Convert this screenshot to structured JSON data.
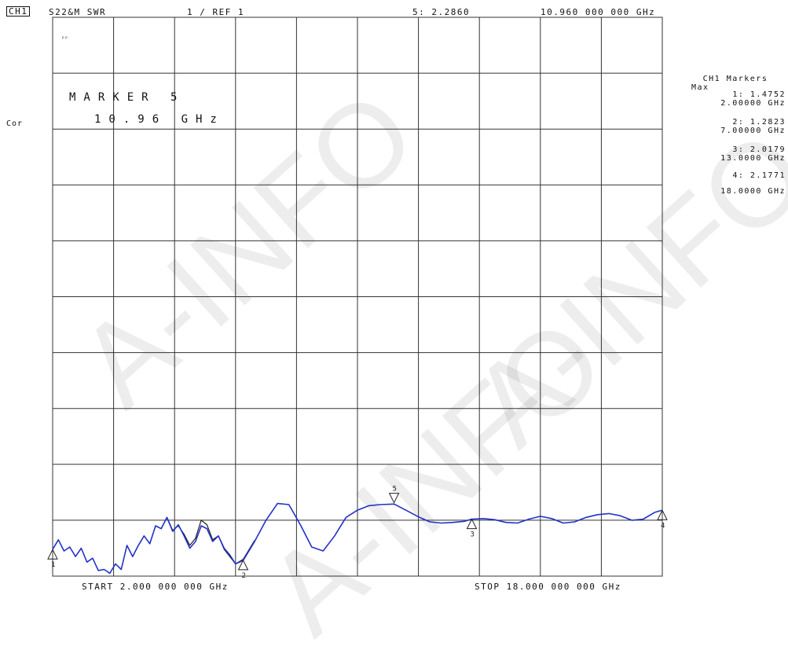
{
  "header": {
    "channel": "CH1",
    "param": "S22&M SWR",
    "scale": "1 / REF 1",
    "marker_value": "5: 2.2860",
    "marker_freq": "10.960 000 000 GHz"
  },
  "side_label": "Cor",
  "tiny_label": "ᵖᵖ",
  "active_marker": {
    "title": "MARKER 5",
    "freq": "10.96 GHz"
  },
  "marker_panel": {
    "header_line1": "CH1 Markers",
    "header_line2": "Max",
    "entries": [
      {
        "value": "1: 1.4752",
        "freq": "2.00000 GHz"
      },
      {
        "value": "2: 1.2823",
        "freq": "7.00000 GHz"
      },
      {
        "value": "3: 2.0179",
        "freq": "13.0000 GHz"
      },
      {
        "value": "4: 2.1771",
        "freq": "18.0000 GHz"
      }
    ]
  },
  "footer": {
    "start": "START 2.000 000 000 GHz",
    "stop": "STOP 18.000 000 000 GHz"
  },
  "watermark": "A-INFO",
  "colors": {
    "grid": "#333333",
    "trace_primary": "#2231c8",
    "trace_memory": "#222222",
    "marker": "#222222"
  },
  "chart_data": {
    "type": "line",
    "xlim": [
      2,
      18
    ],
    "ylim": [
      1,
      11
    ],
    "x_unit": "GHz",
    "series": [
      {
        "key": "data",
        "x": [
          2.0,
          2.15,
          2.3,
          2.45,
          2.6,
          2.75,
          2.9,
          3.05,
          3.2,
          3.35,
          3.5,
          3.65,
          3.8,
          3.95,
          4.1,
          4.25,
          4.4,
          4.55,
          4.7,
          4.85,
          5.0,
          5.15,
          5.3,
          5.45,
          5.6,
          5.75,
          5.9,
          6.05,
          6.2,
          6.35,
          6.5,
          6.65,
          6.8,
          7.0,
          7.3,
          7.6,
          7.9,
          8.2,
          8.5,
          8.8,
          9.1,
          9.4,
          9.7,
          10.0,
          10.3,
          10.6,
          10.96,
          11.3,
          11.6,
          11.9,
          12.2,
          12.5,
          12.8,
          13.0,
          13.3,
          13.6,
          13.9,
          14.2,
          14.5,
          14.8,
          15.1,
          15.4,
          15.7,
          16.0,
          16.3,
          16.6,
          16.9,
          17.2,
          17.5,
          17.8,
          18.0
        ],
        "y": [
          1.48,
          1.65,
          1.45,
          1.52,
          1.35,
          1.5,
          1.25,
          1.32,
          1.1,
          1.12,
          1.05,
          1.22,
          1.12,
          1.55,
          1.35,
          1.55,
          1.72,
          1.58,
          1.9,
          1.85,
          2.05,
          1.8,
          1.92,
          1.72,
          1.5,
          1.62,
          1.9,
          1.85,
          1.62,
          1.72,
          1.5,
          1.38,
          1.22,
          1.28,
          1.62,
          2.0,
          2.3,
          2.28,
          1.92,
          1.52,
          1.45,
          1.72,
          2.05,
          2.18,
          2.26,
          2.28,
          2.29,
          2.17,
          2.06,
          1.97,
          1.95,
          1.96,
          1.98,
          2.02,
          2.03,
          2.01,
          1.96,
          1.95,
          2.02,
          2.07,
          2.03,
          1.95,
          1.97,
          2.05,
          2.1,
          2.12,
          2.08,
          2.0,
          2.02,
          2.14,
          2.18
        ]
      },
      {
        "key": "memory",
        "x": [
          4.85,
          5.0,
          5.15,
          5.3,
          5.45,
          5.6,
          5.75,
          5.9,
          6.05,
          6.2,
          6.35,
          6.5,
          6.65,
          6.8,
          7.0,
          7.3
        ],
        "y": [
          1.85,
          2.05,
          1.82,
          1.9,
          1.75,
          1.55,
          1.68,
          2.0,
          1.92,
          1.65,
          1.72,
          1.48,
          1.35,
          1.22,
          1.3,
          1.64
        ]
      }
    ],
    "markers": [
      {
        "id": "1",
        "x": 2.0,
        "y": 1.4752,
        "dir": "up"
      },
      {
        "id": "2",
        "x": 7.0,
        "y": 1.2823,
        "dir": "up"
      },
      {
        "id": "3",
        "x": 13.0,
        "y": 2.0179,
        "dir": "up"
      },
      {
        "id": "4",
        "x": 18.0,
        "y": 2.1771,
        "dir": "up"
      },
      {
        "id": "5",
        "x": 10.96,
        "y": 2.286,
        "dir": "down"
      }
    ],
    "grid": true
  }
}
